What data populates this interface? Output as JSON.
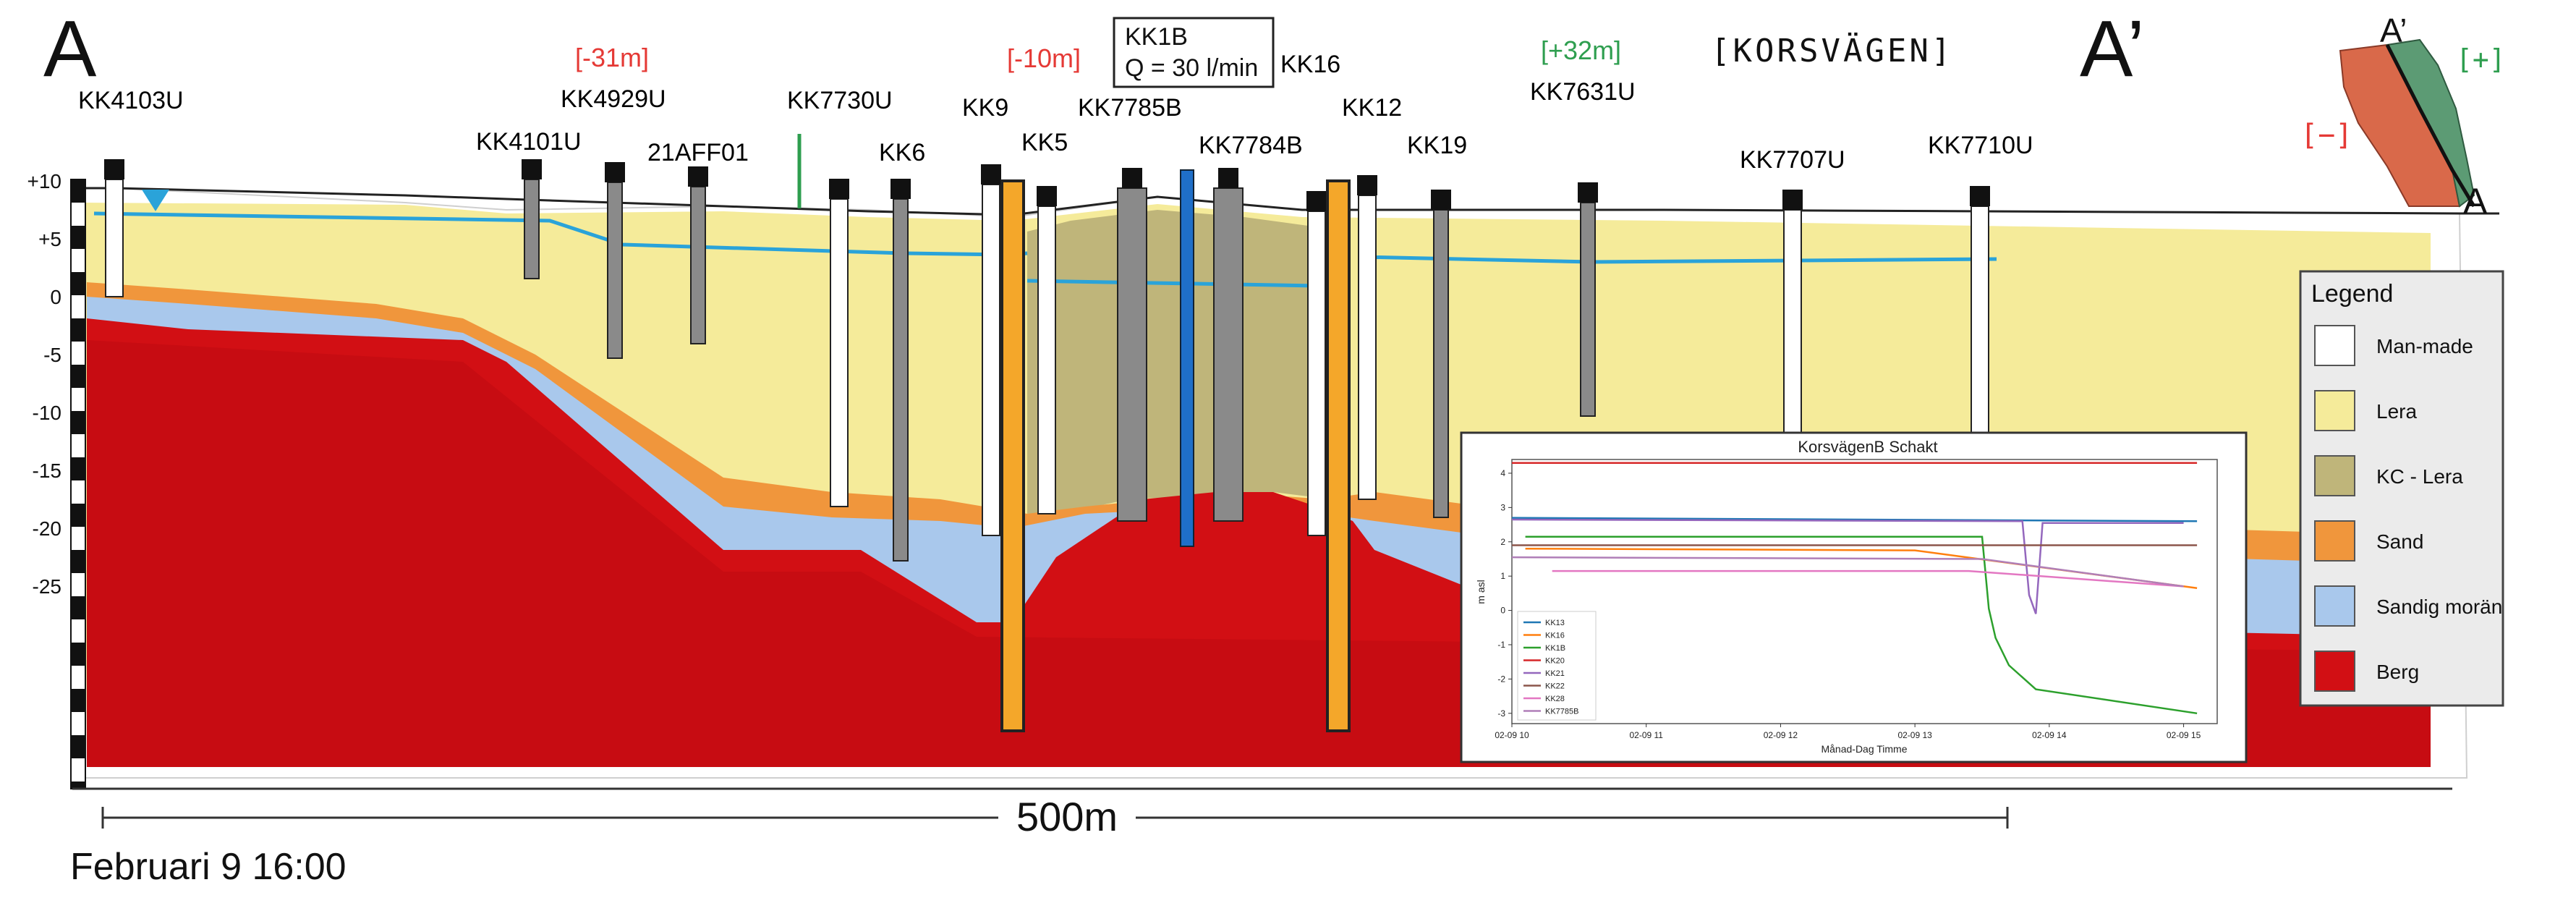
{
  "section": {
    "start_label": "A",
    "end_label": "A’",
    "street_label": "[KORSVÄGEN]",
    "timestamp": "Februari 9 16:00",
    "scale_label": "500m",
    "elevation_ticks": [
      "+10",
      "+5",
      "0",
      "-5",
      "-10",
      "-15",
      "-20",
      "-25"
    ]
  },
  "offsets": [
    {
      "text": "[-31m]",
      "color": "#e53935"
    },
    {
      "text": "[-10m]",
      "color": "#e53935"
    },
    {
      "text": "[+32m]",
      "color": "#2e9e4f"
    }
  ],
  "pumping_box": {
    "well": "KK1B",
    "flow": "Q = 30 l/min"
  },
  "wells": [
    "KK4103U",
    "KK4101U",
    "KK4929U",
    "21AFF01",
    "KK7730U",
    "KK6",
    "KK9",
    "KK5",
    "KK7785B",
    "KK1B",
    "KK7784B",
    "KK16",
    "KK12",
    "KK19",
    "KK7631U",
    "KK7707U",
    "KK7710U"
  ],
  "legend": {
    "title": "Legend",
    "items": [
      {
        "label": "Man-made",
        "color": "#ffffff"
      },
      {
        "label": "Lera",
        "color": "#f5eb9a"
      },
      {
        "label": "KC - Lera",
        "color": "#bfb57a"
      },
      {
        "label": "Sand",
        "color": "#f0963c"
      },
      {
        "label": "Sandig morän",
        "color": "#a9c8ec"
      },
      {
        "label": "Berg",
        "color": "#d20f14"
      }
    ]
  },
  "inset_map": {
    "top_label": "A’",
    "bottom_label": "A",
    "plus_label": "[+]",
    "minus_label": "[−]"
  },
  "chart_data": {
    "type": "line",
    "title": "KorsvägenB Schakt",
    "xlabel": "Månad-Dag Timme",
    "ylabel": "m asl",
    "x_ticks": [
      "02-09 10",
      "02-09 11",
      "02-09 12",
      "02-09 13",
      "02-09 14",
      "02-09 15"
    ],
    "y_ticks": [
      "4",
      "3",
      "2",
      "1",
      "0",
      "-1",
      "-2",
      "-3"
    ],
    "xlim": [
      10,
      15.25
    ],
    "ylim": [
      -3.3,
      4.4
    ],
    "series": [
      {
        "name": "KK13",
        "color": "#1f77b4",
        "points": [
          [
            10,
            2.7
          ],
          [
            15.1,
            2.6
          ]
        ]
      },
      {
        "name": "KK16",
        "color": "#ff7f0e",
        "points": [
          [
            10.1,
            1.8
          ],
          [
            13.0,
            1.75
          ],
          [
            15.1,
            0.65
          ]
        ]
      },
      {
        "name": "KK1B",
        "color": "#2ca02c",
        "points": [
          [
            10.1,
            2.15
          ],
          [
            13.5,
            2.15
          ],
          [
            13.55,
            0.05
          ],
          [
            13.6,
            -0.8
          ],
          [
            13.7,
            -1.6
          ],
          [
            13.9,
            -2.3
          ],
          [
            15.1,
            -3.0
          ]
        ]
      },
      {
        "name": "KK20",
        "color": "#d62728",
        "points": [
          [
            10,
            4.3
          ],
          [
            15.1,
            4.3
          ]
        ]
      },
      {
        "name": "KK21",
        "color": "#9467bd",
        "points": [
          [
            10,
            2.65
          ],
          [
            13.8,
            2.6
          ],
          [
            13.85,
            0.45
          ],
          [
            13.9,
            -0.1
          ],
          [
            13.95,
            2.55
          ],
          [
            15.0,
            2.55
          ]
        ]
      },
      {
        "name": "KK22",
        "color": "#8c564b",
        "points": [
          [
            10,
            1.9
          ],
          [
            15.1,
            1.9
          ]
        ]
      },
      {
        "name": "KK28",
        "color": "#e377c2",
        "points": [
          [
            10.3,
            1.15
          ],
          [
            13.4,
            1.15
          ],
          [
            15.0,
            0.7
          ]
        ]
      },
      {
        "name": "KK7785B",
        "color": "#b07fb8",
        "points": [
          [
            10,
            1.55
          ],
          [
            13.5,
            1.5
          ],
          [
            15.0,
            0.7
          ]
        ]
      }
    ]
  }
}
